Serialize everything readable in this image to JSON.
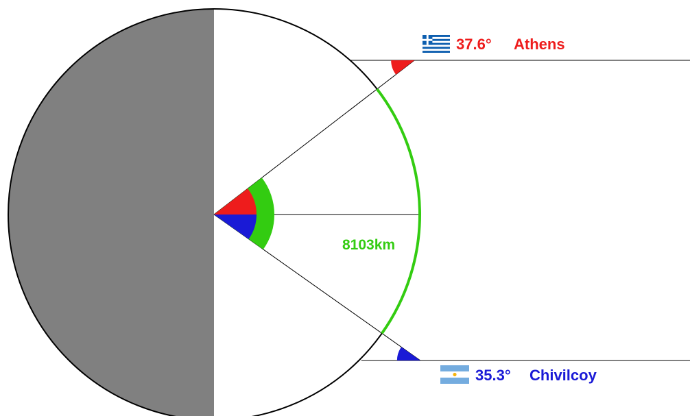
{
  "cities": [
    {
      "name": "Athens",
      "angle_label": "37.6°",
      "latitude_deg": 37.6,
      "hemisphere": "north",
      "flag": "greece-flag",
      "color": "#ee1c1c"
    },
    {
      "name": "Chivilcoy",
      "angle_label": "35.3°",
      "latitude_deg": 35.3,
      "hemisphere": "south",
      "flag": "argentina-flag",
      "color": "#1a1ad6"
    }
  ],
  "distance": {
    "label": "8103km",
    "color": "#33cc11"
  },
  "colors": {
    "night_side": "#808080",
    "day_side": "#ffffff",
    "outline": "#000000",
    "greece_blue": "#0d5eaf",
    "argentina_blue": "#74acdf",
    "argentina_sun": "#f6b40e"
  }
}
